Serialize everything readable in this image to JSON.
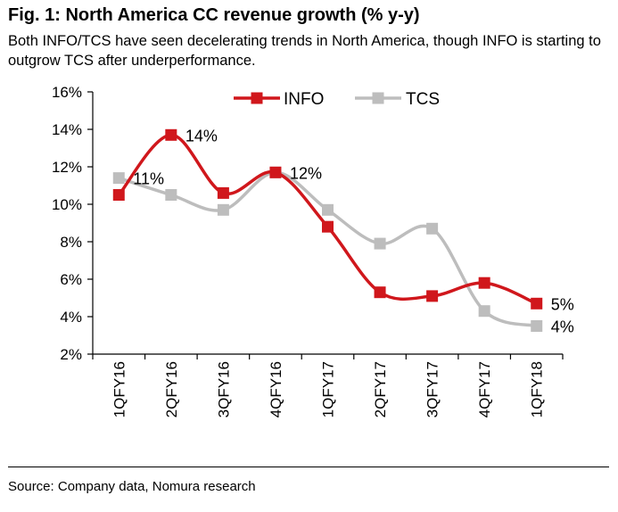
{
  "header": {
    "title": "Fig. 1: North America CC revenue growth (% y-y)",
    "subtitle": "Both INFO/TCS have seen decelerating trends in North America, though INFO is starting to outgrow TCS after underperformance."
  },
  "footer": {
    "source": "Source: Company data, Nomura research"
  },
  "colors": {
    "info": "#d0171c",
    "tcs": "#bdbdbd"
  },
  "chart_data": {
    "type": "line",
    "categories": [
      "1QFY16",
      "2QFY16",
      "3QFY16",
      "4QFY16",
      "1QFY17",
      "2QFY17",
      "3QFY17",
      "4QFY17",
      "1QFY18"
    ],
    "series": [
      {
        "name": "INFO",
        "values": [
          10.5,
          13.7,
          10.6,
          11.7,
          8.8,
          5.3,
          5.1,
          5.8,
          4.7
        ]
      },
      {
        "name": "TCS",
        "values": [
          11.4,
          10.5,
          9.7,
          11.7,
          9.7,
          7.9,
          8.7,
          4.3,
          3.5
        ]
      }
    ],
    "ylim": [
      2,
      16
    ],
    "yticks": [
      "2%",
      "4%",
      "6%",
      "8%",
      "10%",
      "12%",
      "14%",
      "16%"
    ],
    "data_labels": [
      {
        "series": "TCS",
        "index": 0,
        "text": "11%"
      },
      {
        "series": "INFO",
        "index": 1,
        "text": "14%"
      },
      {
        "series": "INFO",
        "index": 3,
        "text": "12%"
      },
      {
        "series": "INFO",
        "index": 8,
        "text": "5%"
      },
      {
        "series": "TCS",
        "index": 8,
        "text": "4%"
      }
    ],
    "legend_position": "top",
    "grid": false
  }
}
